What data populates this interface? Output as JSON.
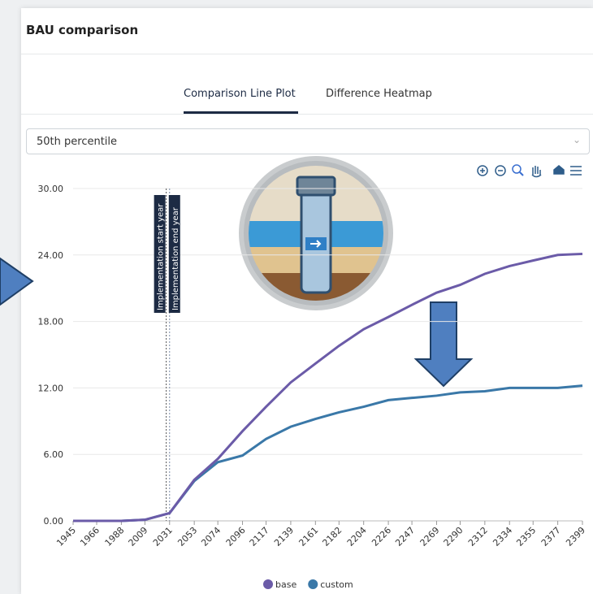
{
  "header": {
    "title": "BAU comparison"
  },
  "tabs": [
    "Comparison Line Plot",
    "Difference Heatmap"
  ],
  "dropdown": {
    "selected": "50th percentile"
  },
  "chart_data": {
    "type": "line",
    "x": [
      1945,
      1966,
      1988,
      2009,
      2031,
      2053,
      2074,
      2096,
      2117,
      2139,
      2161,
      2182,
      2204,
      2226,
      2247,
      2269,
      2290,
      2312,
      2334,
      2355,
      2377,
      2399
    ],
    "series": [
      {
        "name": "base",
        "color": "#6b5ba8",
        "values": [
          0,
          0,
          0,
          0.1,
          0.7,
          3.7,
          5.6,
          8.1,
          10.3,
          12.5,
          14.2,
          15.8,
          17.3,
          18.4,
          19.5,
          20.6,
          21.3,
          22.3,
          23.0,
          23.5,
          24.0,
          24.1
        ]
      },
      {
        "name": "custom",
        "color": "#3a78a8",
        "values": [
          0,
          0,
          0,
          0.1,
          0.7,
          3.6,
          5.3,
          5.9,
          7.4,
          8.5,
          9.2,
          9.8,
          10.3,
          10.9,
          11.1,
          11.3,
          11.6,
          11.7,
          12.0,
          12.0,
          12.0,
          12.2
        ]
      }
    ],
    "xlim": [
      1945,
      2399
    ],
    "xticks": [
      1945,
      1966,
      1988,
      2009,
      2031,
      2053,
      2074,
      2096,
      2117,
      2139,
      2161,
      2182,
      2204,
      2226,
      2247,
      2269,
      2290,
      2312,
      2334,
      2355,
      2377,
      2399
    ],
    "ylim": [
      0,
      30
    ],
    "yticks": [
      {
        "value": 0,
        "label": "0.00"
      },
      {
        "value": 6,
        "label": "6.00"
      },
      {
        "value": 12,
        "label": "12.00"
      },
      {
        "value": 18,
        "label": "18.00"
      },
      {
        "value": 24,
        "label": "24.00"
      },
      {
        "value": 30,
        "label": "30.00"
      }
    ],
    "grid": true,
    "annotations": [
      {
        "text": "Implementation start year",
        "x": 2028
      },
      {
        "text": "Implementation end year",
        "x": 2031
      }
    ]
  }
}
